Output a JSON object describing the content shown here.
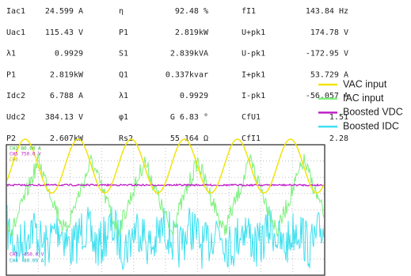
{
  "table": {
    "rows": [
      [
        "Iac1",
        "24.599 A",
        "η",
        "92.48 %",
        "fI1",
        "143.84 Hz"
      ],
      [
        "Uac1",
        "115.43 V",
        "P1",
        "2.819kW",
        "U+pk1",
        "174.78 V"
      ],
      [
        "λ1",
        "0.9929",
        "S1",
        "2.839kVA",
        "U-pk1",
        "-172.95 V"
      ],
      [
        "P1",
        "2.819kW",
        "Q1",
        "0.337kvar",
        "I+pk1",
        "53.729 A"
      ],
      [
        "Idc2",
        "6.788 A",
        "λ1",
        "0.9929",
        "I-pk1",
        "-56.057 A"
      ],
      [
        "Udc2",
        "384.13 V",
        "φ1",
        "G  6.83 °",
        "CfU1",
        "1.51"
      ],
      [
        "P2",
        "2.607kW",
        "Rs2",
        "55.164 Ω",
        "CfI1",
        "2.28"
      ]
    ]
  },
  "legend": [
    {
      "label": "VAC input",
      "color": "#f2e40a"
    },
    {
      "label": "IAC input",
      "color": "#7ef07e"
    },
    {
      "label": "Boosted VDC",
      "color": "#c020c8"
    },
    {
      "label": "Boosted IDC",
      "color": "#3fe0f0"
    }
  ],
  "scope": {
    "labels": [
      {
        "text": "CH2  80.00 A",
        "color": "#30c030"
      },
      {
        "text": "CH5  750.0 V",
        "color": "#c020c8"
      },
      {
        "text": "CH6",
        "color": "#c8b400"
      },
      {
        "text": "CH3  -450.0 V",
        "color": "#c020c8"
      },
      {
        "text": "CH4  -80.00 A",
        "color": "#20b0c0"
      }
    ]
  }
}
